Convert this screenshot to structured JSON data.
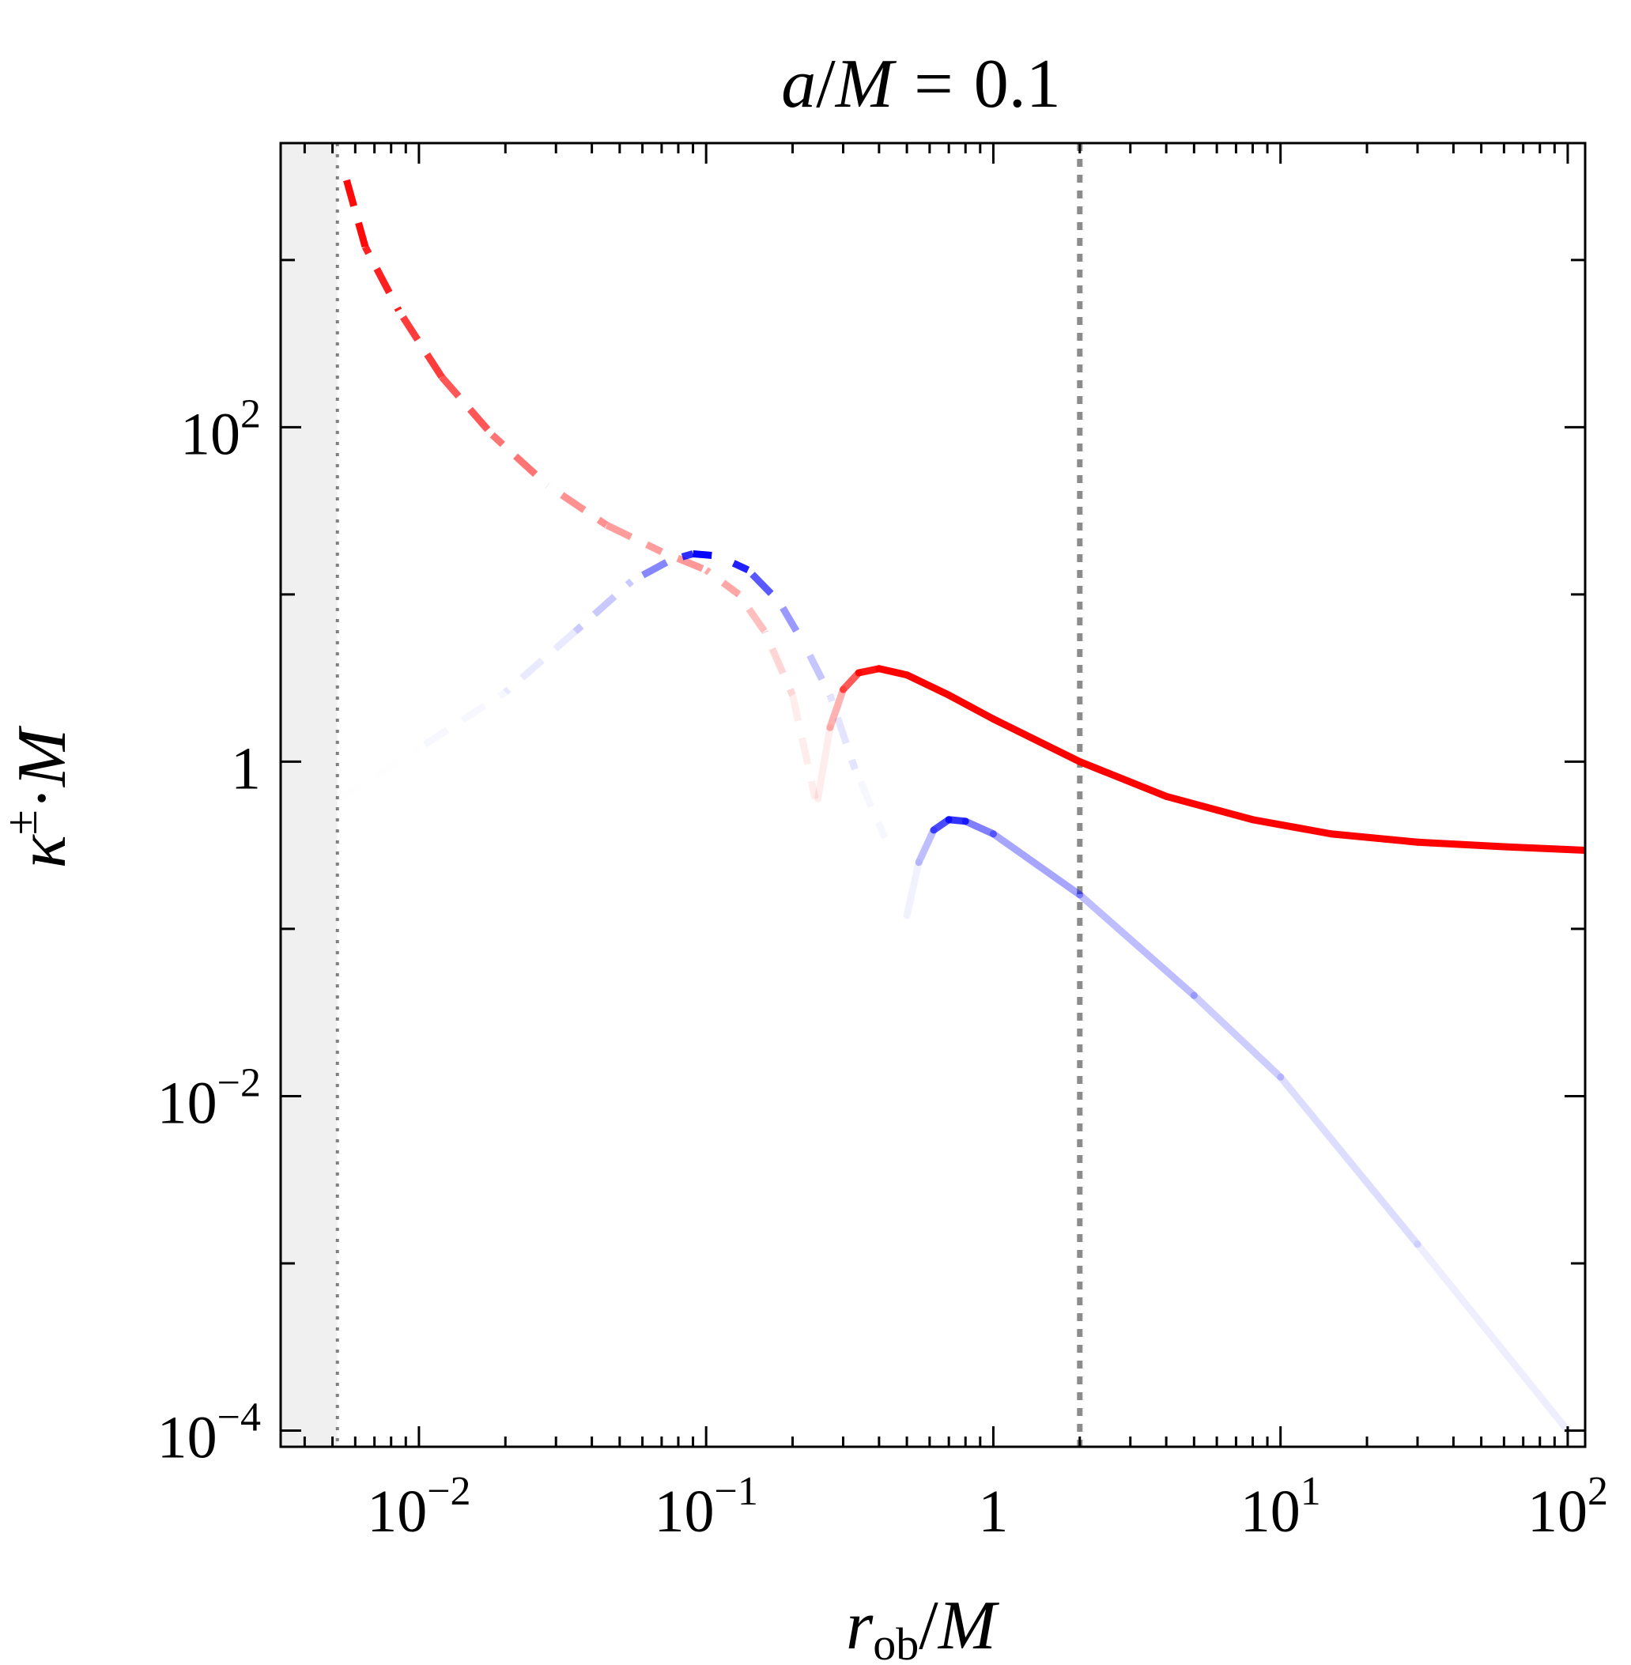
{
  "chart_data": {
    "type": "line",
    "title": {
      "var_a": "a",
      "slash": "/",
      "var_M": "M",
      "equals": "=",
      "value": "0.1"
    },
    "xaxis": {
      "scale": "log",
      "range": [
        0.0033,
        115
      ],
      "label": {
        "var": "r",
        "subscript": "ob",
        "slash": "/",
        "denominator": "M"
      },
      "ticks": [
        {
          "value": 0.01,
          "base": "10",
          "exp": "−2",
          "plain": ""
        },
        {
          "value": 0.1,
          "base": "10",
          "exp": "−1",
          "plain": ""
        },
        {
          "value": 1,
          "base": "",
          "exp": "",
          "plain": "1"
        },
        {
          "value": 10,
          "base": "10",
          "exp": "1",
          "plain": ""
        },
        {
          "value": 100,
          "base": "10",
          "exp": "2",
          "plain": ""
        }
      ]
    },
    "yaxis": {
      "scale": "log",
      "range": [
        8e-05,
        5000
      ],
      "label": {
        "var": "κ",
        "superscript": "±",
        "dot": "·",
        "tail": "M"
      },
      "ticks": [
        {
          "value": 0.0001,
          "base": "10",
          "exp": "−4",
          "plain": ""
        },
        {
          "value": 0.01,
          "base": "10",
          "exp": "−2",
          "plain": ""
        },
        {
          "value": 1,
          "base": "",
          "exp": "",
          "plain": "1"
        },
        {
          "value": 100,
          "base": "10",
          "exp": "2",
          "plain": ""
        }
      ],
      "minor_ticks": [
        0.001,
        0.1,
        10,
        1000
      ]
    },
    "shaded_region": {
      "x_min": 0.0033,
      "x_max": 0.0052,
      "color": "#f0f0f0"
    },
    "reference_lines": [
      {
        "x": 0.0052,
        "style": "dotted-thin",
        "color": "#808080"
      },
      {
        "x": 2.0,
        "style": "dotted-thick",
        "color": "#8c8c8c"
      }
    ],
    "series": [
      {
        "name": "kappa-plus-dashed",
        "color": "#ff0000",
        "dashed": true,
        "points": [
          {
            "x": 0.0056,
            "y": 3000,
            "a": 1.0
          },
          {
            "x": 0.0065,
            "y": 1200,
            "a": 0.92
          },
          {
            "x": 0.0085,
            "y": 500,
            "a": 0.82
          },
          {
            "x": 0.012,
            "y": 200,
            "a": 0.72
          },
          {
            "x": 0.018,
            "y": 90,
            "a": 0.6
          },
          {
            "x": 0.028,
            "y": 45,
            "a": 0.48
          },
          {
            "x": 0.045,
            "y": 26,
            "a": 0.38
          },
          {
            "x": 0.07,
            "y": 18,
            "a": 0.4
          },
          {
            "x": 0.1,
            "y": 14,
            "a": 0.4
          },
          {
            "x": 0.13,
            "y": 10,
            "a": 0.3
          },
          {
            "x": 0.16,
            "y": 6,
            "a": 0.2
          },
          {
            "x": 0.2,
            "y": 2.5,
            "a": 0.12
          },
          {
            "x": 0.24,
            "y": 0.6,
            "a": 0.03
          }
        ]
      },
      {
        "name": "kappa-minus-dashed",
        "color": "#0000ff",
        "dashed": true,
        "points": [
          {
            "x": 0.0052,
            "y": 0.6,
            "a": 0.0
          },
          {
            "x": 0.01,
            "y": 1.2,
            "a": 0.01
          },
          {
            "x": 0.02,
            "y": 2.6,
            "a": 0.05
          },
          {
            "x": 0.035,
            "y": 6,
            "a": 0.12
          },
          {
            "x": 0.055,
            "y": 12,
            "a": 0.3
          },
          {
            "x": 0.075,
            "y": 16,
            "a": 0.65
          },
          {
            "x": 0.09,
            "y": 17.5,
            "a": 1.0
          },
          {
            "x": 0.11,
            "y": 17,
            "a": 0.95
          },
          {
            "x": 0.14,
            "y": 14,
            "a": 0.8
          },
          {
            "x": 0.18,
            "y": 9,
            "a": 0.5
          },
          {
            "x": 0.22,
            "y": 5,
            "a": 0.3
          },
          {
            "x": 0.27,
            "y": 2.5,
            "a": 0.15
          },
          {
            "x": 0.33,
            "y": 0.9,
            "a": 0.06
          },
          {
            "x": 0.42,
            "y": 0.35,
            "a": 0.0
          }
        ]
      },
      {
        "name": "kappa-plus-solid",
        "color": "#ff0000",
        "dashed": false,
        "points": [
          {
            "x": 0.245,
            "y": 0.6,
            "a": 0.0
          },
          {
            "x": 0.27,
            "y": 1.6,
            "a": 0.15
          },
          {
            "x": 0.3,
            "y": 2.7,
            "a": 0.45
          },
          {
            "x": 0.34,
            "y": 3.4,
            "a": 0.85
          },
          {
            "x": 0.4,
            "y": 3.6,
            "a": 1.0
          },
          {
            "x": 0.5,
            "y": 3.3,
            "a": 1.0
          },
          {
            "x": 0.7,
            "y": 2.5,
            "a": 1.0
          },
          {
            "x": 1.0,
            "y": 1.8,
            "a": 1.0
          },
          {
            "x": 2.0,
            "y": 1.0,
            "a": 1.0
          },
          {
            "x": 4.0,
            "y": 0.62,
            "a": 1.0
          },
          {
            "x": 8.0,
            "y": 0.45,
            "a": 1.0
          },
          {
            "x": 15.0,
            "y": 0.37,
            "a": 1.0
          },
          {
            "x": 30.0,
            "y": 0.33,
            "a": 1.0
          },
          {
            "x": 60.0,
            "y": 0.31,
            "a": 1.0
          },
          {
            "x": 115.0,
            "y": 0.295,
            "a": 1.0
          }
        ]
      },
      {
        "name": "kappa-minus-solid",
        "color": "#0000ff",
        "dashed": false,
        "points": [
          {
            "x": 0.5,
            "y": 0.12,
            "a": 0.0
          },
          {
            "x": 0.55,
            "y": 0.25,
            "a": 0.1
          },
          {
            "x": 0.62,
            "y": 0.39,
            "a": 0.4
          },
          {
            "x": 0.7,
            "y": 0.45,
            "a": 1.0
          },
          {
            "x": 0.8,
            "y": 0.44,
            "a": 0.6
          },
          {
            "x": 1.0,
            "y": 0.37,
            "a": 0.4
          },
          {
            "x": 2.0,
            "y": 0.16,
            "a": 0.3
          },
          {
            "x": 5.0,
            "y": 0.04,
            "a": 0.22
          },
          {
            "x": 10.0,
            "y": 0.013,
            "a": 0.17
          },
          {
            "x": 30.0,
            "y": 0.0013,
            "a": 0.1
          },
          {
            "x": 100.0,
            "y": 0.0001,
            "a": 0.03
          }
        ]
      }
    ]
  }
}
